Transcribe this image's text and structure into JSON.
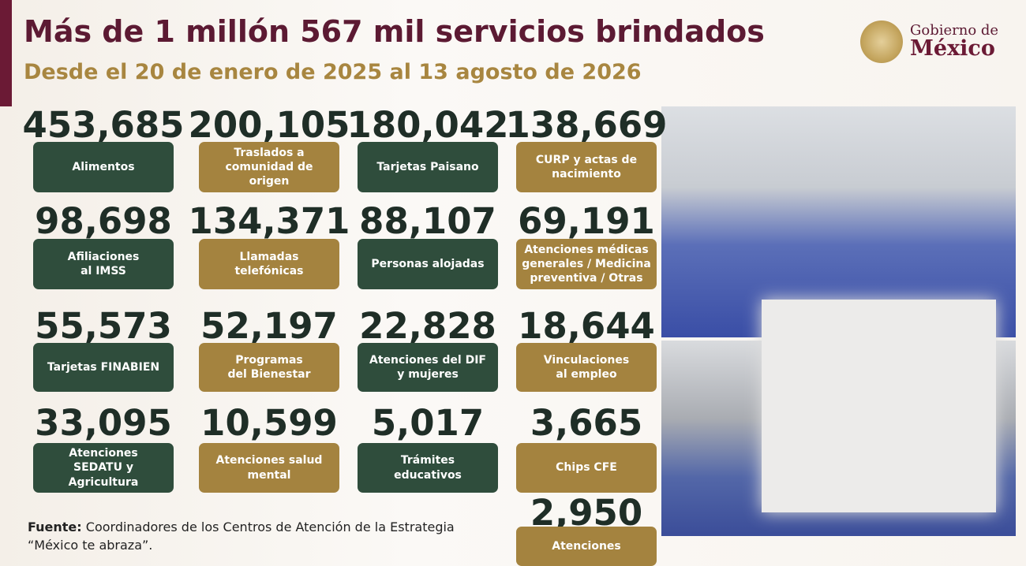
{
  "header": {
    "title": "Más de 1 millón 567 mil servicios brindados",
    "subtitle": "Desde el 20 de enero de 2025 al 13 agosto de 2026"
  },
  "logo": {
    "line1": "Gobierno de",
    "line2": "México"
  },
  "cards": [
    {
      "number": "453,685",
      "label": "Alimentos"
    },
    {
      "number": "200,105",
      "label": "Traslados a\ncomunidad de\norigen"
    },
    {
      "number": "180,042",
      "label": "Tarjetas Paisano"
    },
    {
      "number": "138,669",
      "label": "CURP y actas de\nnacimiento"
    },
    {
      "number": "98,698",
      "label": "Afiliaciones\nal IMSS"
    },
    {
      "number": "134,371",
      "label": "Llamadas\ntelefónicas"
    },
    {
      "number": "88,107",
      "label": "Personas alojadas"
    },
    {
      "number": "69,191",
      "label": "Atenciones médicas\ngenerales / Medicina\npreventiva / Otras"
    },
    {
      "number": "55,573",
      "label": "Tarjetas FINABIEN"
    },
    {
      "number": "52,197",
      "label": "Programas\ndel Bienestar"
    },
    {
      "number": "22,828",
      "label": "Atenciones del DIF\ny mujeres"
    },
    {
      "number": "18,644",
      "label": "Vinculaciones\nal empleo"
    },
    {
      "number": "33,095",
      "label": "Atenciones\nSEDATU y\nAgricultura"
    },
    {
      "number": "10,599",
      "label": "Atenciones salud\nmental"
    },
    {
      "number": "5,017",
      "label": "Trámites\neducativos"
    },
    {
      "number": "3,665",
      "label": "Chips CFE"
    },
    {
      "number": "2,950",
      "label": "Atenciones"
    }
  ],
  "source": {
    "bold": "Fuente:",
    "text": "Coordinadores de los Centros de Atención de la Estrategia",
    "text2": "“México te abraza”."
  }
}
